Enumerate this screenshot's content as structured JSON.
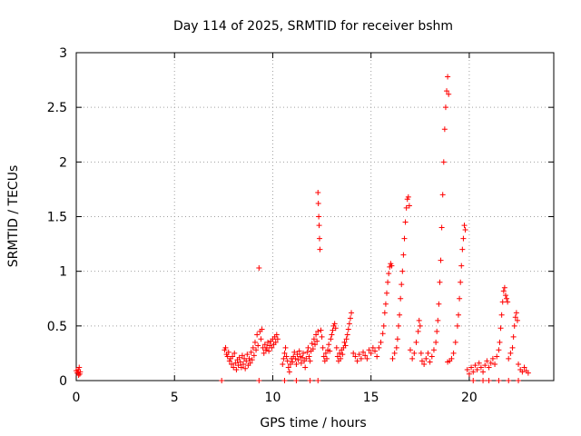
{
  "chart_data": {
    "type": "scatter",
    "title": "Day 114 of 2025, SRMTID for receiver bshm",
    "xlabel": "GPS time / hours",
    "ylabel": "SRMTID / TECUs",
    "xlim": [
      0,
      24.3
    ],
    "ylim": [
      0,
      3
    ],
    "xticks": [
      0,
      5,
      10,
      15,
      20
    ],
    "yticks": [
      0,
      0.5,
      1,
      1.5,
      2,
      2.5,
      3
    ],
    "grid": true,
    "color": "#ff0000",
    "series": [
      {
        "values": [
          [
            0.0,
            0.09
          ],
          [
            0.05,
            0.07
          ],
          [
            0.1,
            0.1
          ],
          [
            0.12,
            0.05
          ],
          [
            0.15,
            0.12
          ],
          [
            0.18,
            0.06
          ],
          [
            0.2,
            0.08
          ],
          [
            7.4,
            0.0
          ],
          [
            7.55,
            0.28
          ],
          [
            7.6,
            0.3
          ],
          [
            7.65,
            0.24
          ],
          [
            7.7,
            0.22
          ],
          [
            7.75,
            0.26
          ],
          [
            7.8,
            0.18
          ],
          [
            7.85,
            0.2
          ],
          [
            7.9,
            0.15
          ],
          [
            7.95,
            0.22
          ],
          [
            8.0,
            0.12
          ],
          [
            8.05,
            0.25
          ],
          [
            8.1,
            0.16
          ],
          [
            8.15,
            0.1
          ],
          [
            8.2,
            0.19
          ],
          [
            8.25,
            0.14
          ],
          [
            8.3,
            0.21
          ],
          [
            8.35,
            0.17
          ],
          [
            8.4,
            0.12
          ],
          [
            8.45,
            0.23
          ],
          [
            8.5,
            0.15
          ],
          [
            8.55,
            0.2
          ],
          [
            8.6,
            0.11
          ],
          [
            8.65,
            0.18
          ],
          [
            8.7,
            0.24
          ],
          [
            8.75,
            0.14
          ],
          [
            8.8,
            0.2
          ],
          [
            8.85,
            0.16
          ],
          [
            8.9,
            0.26
          ],
          [
            8.95,
            0.19
          ],
          [
            9.0,
            0.3
          ],
          [
            9.05,
            0.23
          ],
          [
            9.1,
            0.35
          ],
          [
            9.15,
            0.28
          ],
          [
            9.2,
            0.42
          ],
          [
            9.25,
            0.32
          ],
          [
            9.3,
            1.03
          ],
          [
            9.35,
            0.45
          ],
          [
            9.4,
            0.38
          ],
          [
            9.45,
            0.47
          ],
          [
            9.5,
            0.3
          ],
          [
            9.55,
            0.25
          ],
          [
            9.6,
            0.33
          ],
          [
            9.65,
            0.28
          ],
          [
            9.7,
            0.3
          ],
          [
            9.75,
            0.35
          ],
          [
            9.8,
            0.27
          ],
          [
            9.85,
            0.32
          ],
          [
            9.9,
            0.36
          ],
          [
            9.95,
            0.3
          ],
          [
            10.0,
            0.38
          ],
          [
            10.05,
            0.33
          ],
          [
            10.1,
            0.4
          ],
          [
            10.15,
            0.35
          ],
          [
            10.2,
            0.42
          ],
          [
            10.25,
            0.38
          ],
          [
            9.3,
            0.0
          ],
          [
            10.6,
            0.0
          ],
          [
            11.2,
            0.0
          ],
          [
            11.9,
            0.0
          ],
          [
            12.3,
            0.0
          ],
          [
            10.5,
            0.15
          ],
          [
            10.55,
            0.2
          ],
          [
            10.6,
            0.25
          ],
          [
            10.65,
            0.3
          ],
          [
            10.7,
            0.22
          ],
          [
            10.75,
            0.18
          ],
          [
            10.8,
            0.12
          ],
          [
            10.85,
            0.08
          ],
          [
            10.9,
            0.15
          ],
          [
            10.95,
            0.2
          ],
          [
            11.0,
            0.17
          ],
          [
            11.05,
            0.22
          ],
          [
            11.1,
            0.26
          ],
          [
            11.15,
            0.2
          ],
          [
            11.2,
            0.15
          ],
          [
            11.25,
            0.24
          ],
          [
            11.3,
            0.19
          ],
          [
            11.35,
            0.27
          ],
          [
            11.4,
            0.22
          ],
          [
            11.45,
            0.16
          ],
          [
            11.5,
            0.21
          ],
          [
            11.55,
            0.25
          ],
          [
            11.6,
            0.18
          ],
          [
            11.65,
            0.12
          ],
          [
            11.7,
            0.2
          ],
          [
            11.75,
            0.26
          ],
          [
            11.8,
            0.3
          ],
          [
            11.85,
            0.22
          ],
          [
            11.9,
            0.18
          ],
          [
            11.95,
            0.27
          ],
          [
            12.0,
            0.34
          ],
          [
            12.05,
            0.29
          ],
          [
            12.1,
            0.38
          ],
          [
            12.15,
            0.33
          ],
          [
            12.2,
            0.42
          ],
          [
            12.25,
            0.36
          ],
          [
            12.3,
            0.45
          ],
          [
            12.3,
            1.72
          ],
          [
            12.32,
            1.62
          ],
          [
            12.34,
            1.5
          ],
          [
            12.36,
            1.42
          ],
          [
            12.38,
            1.3
          ],
          [
            12.4,
            1.2
          ],
          [
            12.45,
            0.46
          ],
          [
            12.5,
            0.4
          ],
          [
            12.55,
            0.3
          ],
          [
            12.6,
            0.22
          ],
          [
            12.65,
            0.18
          ],
          [
            12.7,
            0.25
          ],
          [
            12.75,
            0.2
          ],
          [
            12.8,
            0.28
          ],
          [
            12.85,
            0.33
          ],
          [
            12.9,
            0.27
          ],
          [
            12.95,
            0.38
          ],
          [
            13.0,
            0.42
          ],
          [
            13.05,
            0.46
          ],
          [
            13.1,
            0.5
          ],
          [
            13.15,
            0.52
          ],
          [
            13.2,
            0.48
          ],
          [
            13.25,
            0.3
          ],
          [
            13.3,
            0.22
          ],
          [
            13.35,
            0.18
          ],
          [
            13.4,
            0.25
          ],
          [
            13.45,
            0.2
          ],
          [
            13.5,
            0.28
          ],
          [
            13.55,
            0.24
          ],
          [
            13.6,
            0.3
          ],
          [
            13.65,
            0.35
          ],
          [
            13.7,
            0.32
          ],
          [
            13.75,
            0.38
          ],
          [
            13.8,
            0.42
          ],
          [
            13.85,
            0.47
          ],
          [
            13.9,
            0.52
          ],
          [
            13.95,
            0.57
          ],
          [
            14.0,
            0.62
          ],
          [
            14.1,
            0.25
          ],
          [
            14.2,
            0.22
          ],
          [
            14.3,
            0.18
          ],
          [
            14.4,
            0.24
          ],
          [
            14.5,
            0.2
          ],
          [
            14.6,
            0.26
          ],
          [
            14.7,
            0.23
          ],
          [
            14.8,
            0.2
          ],
          [
            14.9,
            0.28
          ],
          [
            15.0,
            0.25
          ],
          [
            15.1,
            0.3
          ],
          [
            15.2,
            0.27
          ],
          [
            15.3,
            0.22
          ],
          [
            15.4,
            0.3
          ],
          [
            15.5,
            0.35
          ],
          [
            15.6,
            0.43
          ],
          [
            15.65,
            0.5
          ],
          [
            15.7,
            0.62
          ],
          [
            15.75,
            0.7
          ],
          [
            15.8,
            0.8
          ],
          [
            15.85,
            0.9
          ],
          [
            15.9,
            0.98
          ],
          [
            15.95,
            1.04
          ],
          [
            16.0,
            1.07
          ],
          [
            16.05,
            1.05
          ],
          [
            16.1,
            0.2
          ],
          [
            16.2,
            0.25
          ],
          [
            16.3,
            0.3
          ],
          [
            16.35,
            0.38
          ],
          [
            16.4,
            0.5
          ],
          [
            16.45,
            0.6
          ],
          [
            16.5,
            0.75
          ],
          [
            16.55,
            0.88
          ],
          [
            16.6,
            1.0
          ],
          [
            16.65,
            1.15
          ],
          [
            16.7,
            1.3
          ],
          [
            16.75,
            1.45
          ],
          [
            16.8,
            1.58
          ],
          [
            16.85,
            1.66
          ],
          [
            16.9,
            1.68
          ],
          [
            16.95,
            1.6
          ],
          [
            17.0,
            0.28
          ],
          [
            17.1,
            0.2
          ],
          [
            17.2,
            0.25
          ],
          [
            17.3,
            0.35
          ],
          [
            17.4,
            0.45
          ],
          [
            17.45,
            0.55
          ],
          [
            17.5,
            0.5
          ],
          [
            17.55,
            0.25
          ],
          [
            17.6,
            0.18
          ],
          [
            17.7,
            0.15
          ],
          [
            17.8,
            0.2
          ],
          [
            17.9,
            0.25
          ],
          [
            18.0,
            0.17
          ],
          [
            18.1,
            0.22
          ],
          [
            18.2,
            0.28
          ],
          [
            18.3,
            0.35
          ],
          [
            18.35,
            0.45
          ],
          [
            18.4,
            0.55
          ],
          [
            18.45,
            0.7
          ],
          [
            18.5,
            0.9
          ],
          [
            18.55,
            1.1
          ],
          [
            18.6,
            1.4
          ],
          [
            18.65,
            1.7
          ],
          [
            18.7,
            2.0
          ],
          [
            18.75,
            2.3
          ],
          [
            18.8,
            2.5
          ],
          [
            18.85,
            2.65
          ],
          [
            18.9,
            2.78
          ],
          [
            18.95,
            2.62
          ],
          [
            18.9,
            0.17
          ],
          [
            19.0,
            0.18
          ],
          [
            19.1,
            0.2
          ],
          [
            19.2,
            0.25
          ],
          [
            19.3,
            0.35
          ],
          [
            19.4,
            0.5
          ],
          [
            19.45,
            0.6
          ],
          [
            19.5,
            0.75
          ],
          [
            19.55,
            0.9
          ],
          [
            19.6,
            1.05
          ],
          [
            19.65,
            1.2
          ],
          [
            19.7,
            1.3
          ],
          [
            19.75,
            1.42
          ],
          [
            19.8,
            1.38
          ],
          [
            19.9,
            0.1
          ],
          [
            20.0,
            0.06
          ],
          [
            20.1,
            0.12
          ],
          [
            20.2,
            0.08
          ],
          [
            20.3,
            0.14
          ],
          [
            20.4,
            0.1
          ],
          [
            20.5,
            0.16
          ],
          [
            20.6,
            0.12
          ],
          [
            20.7,
            0.08
          ],
          [
            20.8,
            0.14
          ],
          [
            20.9,
            0.18
          ],
          [
            21.0,
            0.12
          ],
          [
            21.1,
            0.16
          ],
          [
            21.2,
            0.2
          ],
          [
            21.3,
            0.15
          ],
          [
            21.4,
            0.22
          ],
          [
            21.5,
            0.28
          ],
          [
            21.55,
            0.35
          ],
          [
            21.6,
            0.48
          ],
          [
            21.65,
            0.6
          ],
          [
            21.7,
            0.72
          ],
          [
            21.75,
            0.82
          ],
          [
            21.8,
            0.85
          ],
          [
            21.85,
            0.78
          ],
          [
            21.9,
            0.75
          ],
          [
            21.95,
            0.72
          ],
          [
            22.0,
            0.2
          ],
          [
            22.1,
            0.25
          ],
          [
            22.2,
            0.3
          ],
          [
            22.25,
            0.4
          ],
          [
            22.3,
            0.5
          ],
          [
            22.35,
            0.58
          ],
          [
            22.4,
            0.62
          ],
          [
            22.45,
            0.55
          ],
          [
            22.5,
            0.15
          ],
          [
            22.6,
            0.1
          ],
          [
            22.7,
            0.08
          ],
          [
            22.8,
            0.12
          ],
          [
            22.9,
            0.09
          ],
          [
            23.0,
            0.07
          ],
          [
            20.2,
            0.0
          ],
          [
            20.7,
            0.0
          ],
          [
            21.0,
            0.0
          ],
          [
            21.5,
            0.0
          ],
          [
            22.0,
            0.0
          ],
          [
            22.5,
            0.0
          ]
        ]
      }
    ]
  }
}
